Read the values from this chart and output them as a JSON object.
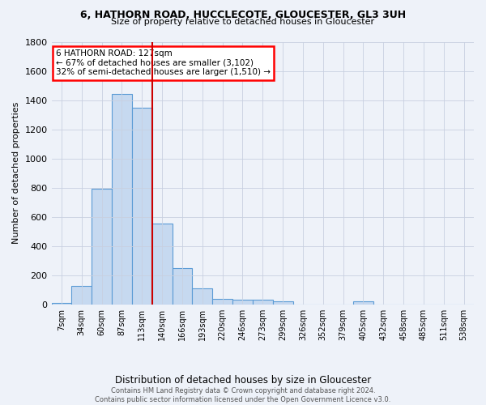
{
  "title_line1": "6, HATHORN ROAD, HUCCLECOTE, GLOUCESTER, GL3 3UH",
  "title_line2": "Size of property relative to detached houses in Gloucester",
  "xlabel": "Distribution of detached houses by size in Gloucester",
  "ylabel": "Number of detached properties",
  "bar_color": "#c6d9f0",
  "bar_edge_color": "#5b9bd5",
  "categories": [
    "7sqm",
    "34sqm",
    "60sqm",
    "87sqm",
    "113sqm",
    "140sqm",
    "166sqm",
    "193sqm",
    "220sqm",
    "246sqm",
    "273sqm",
    "299sqm",
    "326sqm",
    "352sqm",
    "379sqm",
    "405sqm",
    "432sqm",
    "458sqm",
    "485sqm",
    "511sqm",
    "538sqm"
  ],
  "values": [
    10,
    125,
    790,
    1440,
    1345,
    555,
    250,
    110,
    35,
    30,
    30,
    20,
    0,
    0,
    0,
    20,
    0,
    0,
    0,
    0,
    0
  ],
  "vline_position": 4.5,
  "vline_color": "#cc0000",
  "ylim": [
    0,
    1800
  ],
  "yticks": [
    0,
    200,
    400,
    600,
    800,
    1000,
    1200,
    1400,
    1600,
    1800
  ],
  "annotation_title": "6 HATHORN ROAD: 127sqm",
  "annotation_line1": "← 67% of detached houses are smaller (3,102)",
  "annotation_line2": "32% of semi-detached houses are larger (1,510) →",
  "footer_line1": "Contains HM Land Registry data © Crown copyright and database right 2024.",
  "footer_line2": "Contains public sector information licensed under the Open Government Licence v3.0.",
  "background_color": "#eef2f9",
  "plot_bg_color": "#eef2f9",
  "grid_color": "#c8d0e0"
}
